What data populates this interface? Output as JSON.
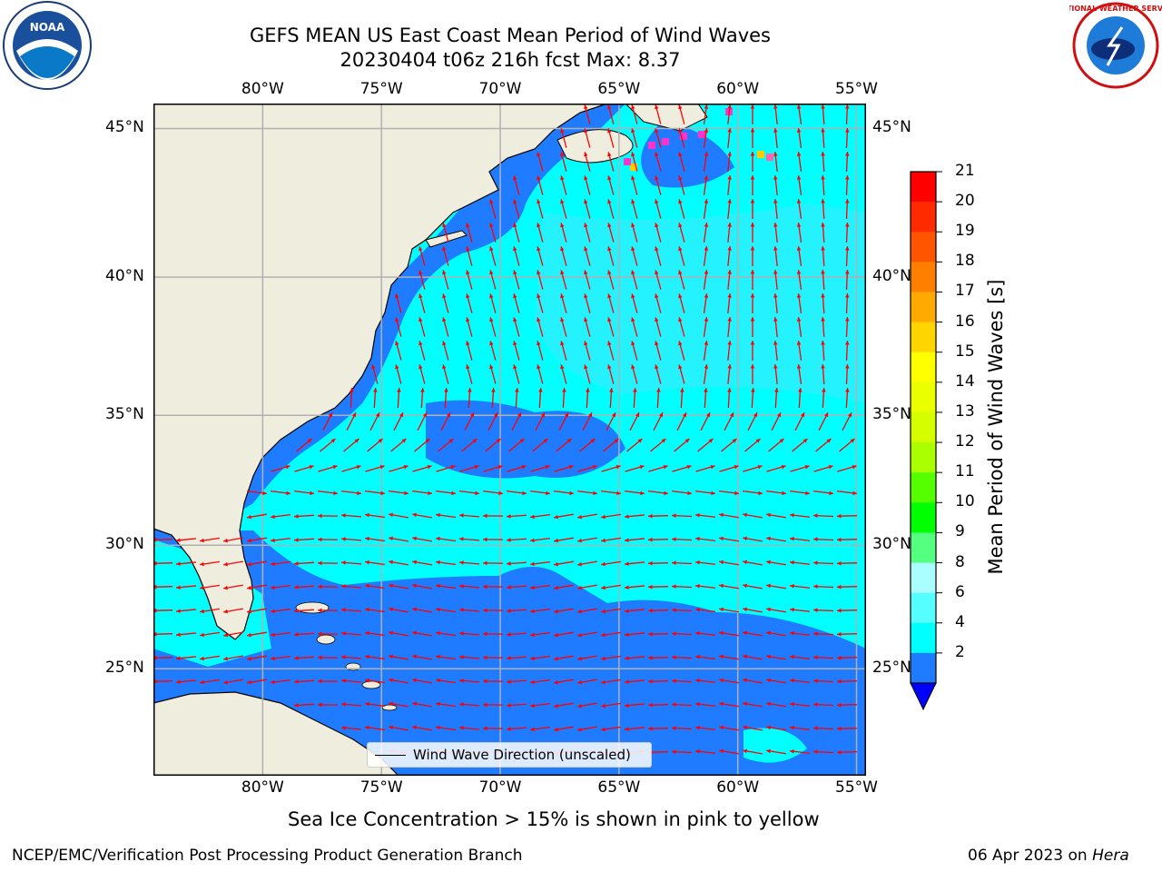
{
  "title": {
    "line1": "GEFS MEAN US East Coast Mean Period of Wind Waves",
    "line2": "20230404 t06z 216h fcst   Max: 8.37"
  },
  "logos": {
    "left_text": "NOAA",
    "right_text": "NATIONAL WEATHER SERVICE"
  },
  "map": {
    "lon_labels": [
      "80°W",
      "75°W",
      "70°W",
      "65°W",
      "60°W",
      "55°W"
    ],
    "lat_labels": [
      "45°N",
      "40°N",
      "35°N",
      "30°N",
      "25°N"
    ],
    "legend_label": "Wind Wave Direction (unscaled)",
    "colors": {
      "land": "#efedde",
      "ocean_dark": "#1f7bff",
      "ocean_mid": "#00ffff",
      "ocean_light": "#44e8ff",
      "arrow": "#ff0000",
      "grid": "#b0b0b0"
    }
  },
  "colorbar": {
    "label": "Mean Period of Wind Waves [s]",
    "left_labels": [
      "21",
      "20",
      "19",
      "18",
      "17",
      "16",
      "15",
      "14",
      "13",
      "12",
      "11",
      "10",
      "9",
      "8",
      "6",
      "4",
      "2"
    ],
    "colors": [
      "#ff0000",
      "#ff2a00",
      "#ff5500",
      "#ff8000",
      "#ffaa00",
      "#ffd500",
      "#ffff00",
      "#eaff00",
      "#d5ff00",
      "#aaff00",
      "#55ff00",
      "#00ff00",
      "#55ff80",
      "#aaffff",
      "#55ffff",
      "#00ffff",
      "#1f7bff"
    ],
    "extend_color": "#0000ff"
  },
  "sea_ice_note": "Sea Ice Concentration > 15% is shown in pink to yellow",
  "footer": {
    "left": "NCEP/EMC/Verification Post Processing Product Generation Branch",
    "right_prefix": "06 Apr 2023 on ",
    "right_italic": "Hera"
  }
}
